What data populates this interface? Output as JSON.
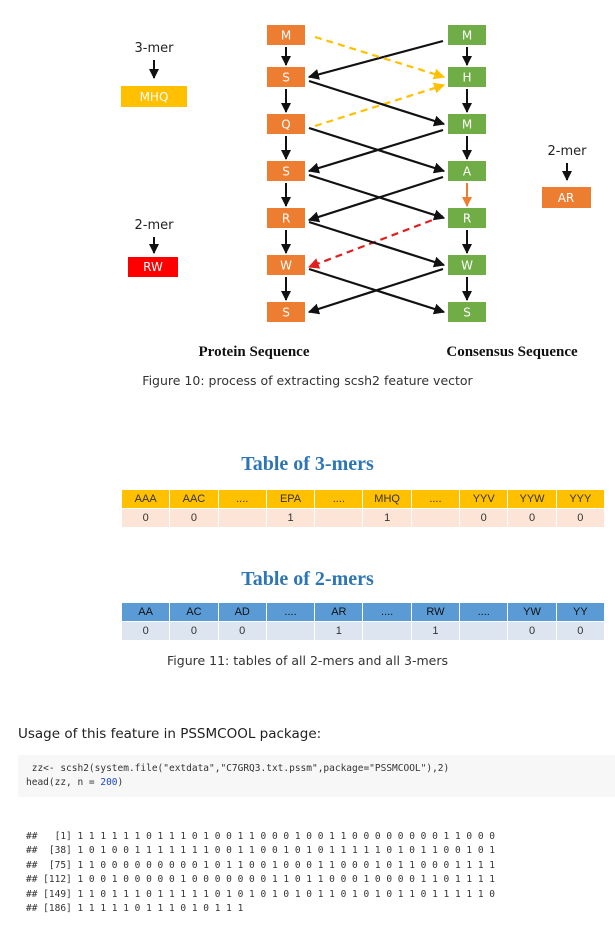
{
  "figure10": {
    "protein_nodes": [
      "M",
      "S",
      "Q",
      "S",
      "R",
      "W",
      "S"
    ],
    "consensus_nodes": [
      "M",
      "H",
      "M",
      "A",
      "R",
      "W",
      "S"
    ],
    "left_kmer_label": "3-mer",
    "left_kmer_value": "MHQ",
    "left_2mer_label": "2-mer",
    "left_2mer_value": "RW",
    "right_2mer_label": "2-mer",
    "right_2mer_value": "AR",
    "protein_title": "Protein Sequence",
    "consensus_title": "Consensus Sequence",
    "caption": "Figure 10: process of extracting scsh2 feature vector",
    "colors": {
      "protein": "#ed7d31",
      "consensus": "#70ad47",
      "mhq": "#ffc000",
      "rw": "#ff0000",
      "ar": "#ed7d31",
      "yellow_arrow": "#ffc000",
      "red_arrow": "#e02020"
    }
  },
  "table3": {
    "title": "Table of 3-mers",
    "headers": [
      "AAA",
      "AAC",
      "....",
      "EPA",
      "....",
      "MHQ",
      "....",
      "YYV",
      "YYW",
      "YYY"
    ],
    "values": [
      "0",
      "0",
      "",
      "1",
      "",
      "1",
      "",
      "0",
      "0",
      "0"
    ]
  },
  "table2": {
    "title": "Table of 2-mers",
    "headers": [
      "AA",
      "AC",
      "AD",
      "....",
      "AR",
      "....",
      "RW",
      "....",
      "YW",
      "YY"
    ],
    "values": [
      "0",
      "0",
      "0",
      "",
      "1",
      "",
      "1",
      "",
      "0",
      "0"
    ]
  },
  "figure11_caption": "Figure 11: tables of all 2-mers and all 3-mers",
  "usage_text": "Usage of this feature in PSSMCOOL package:",
  "code": {
    "line1": " zz<- scsh2(system.file(\"extdata\",\"C7GRQ3.txt.pssm\",package=\"PSSMCOOL\"),2)",
    "line2_pre": "head(zz, n = ",
    "line2_num": "200",
    "line2_post": ")"
  },
  "output_lines": [
    "##   [1] 1 1 1 1 1 1 0 1 1 1 0 1 0 0 1 1 0 0 0 1 0 0 1 1 0 0 0 0 0 0 0 0 1 1 0 0 0",
    "##  [38] 1 0 1 0 0 1 1 1 1 1 1 1 0 0 1 1 0 0 1 0 1 0 1 1 1 1 1 0 1 0 1 1 0 0 1 0 1",
    "##  [75] 1 1 0 0 0 0 0 0 0 0 0 1 0 1 1 0 0 1 0 0 0 1 1 0 0 0 1 0 1 1 0 0 0 1 1 1 1",
    "## [112] 1 0 0 1 0 0 0 0 0 1 0 0 0 0 0 0 0 1 1 0 1 1 0 0 0 1 0 0 0 0 1 1 0 1 1 1 1",
    "## [149] 1 1 0 1 1 1 0 1 1 1 1 1 0 1 0 1 0 1 0 1 0 1 1 0 1 0 1 0 1 1 0 1 1 1 1 1 0",
    "## [186] 1 1 1 1 1 0 1 1 1 0 1 0 1 1 1"
  ]
}
